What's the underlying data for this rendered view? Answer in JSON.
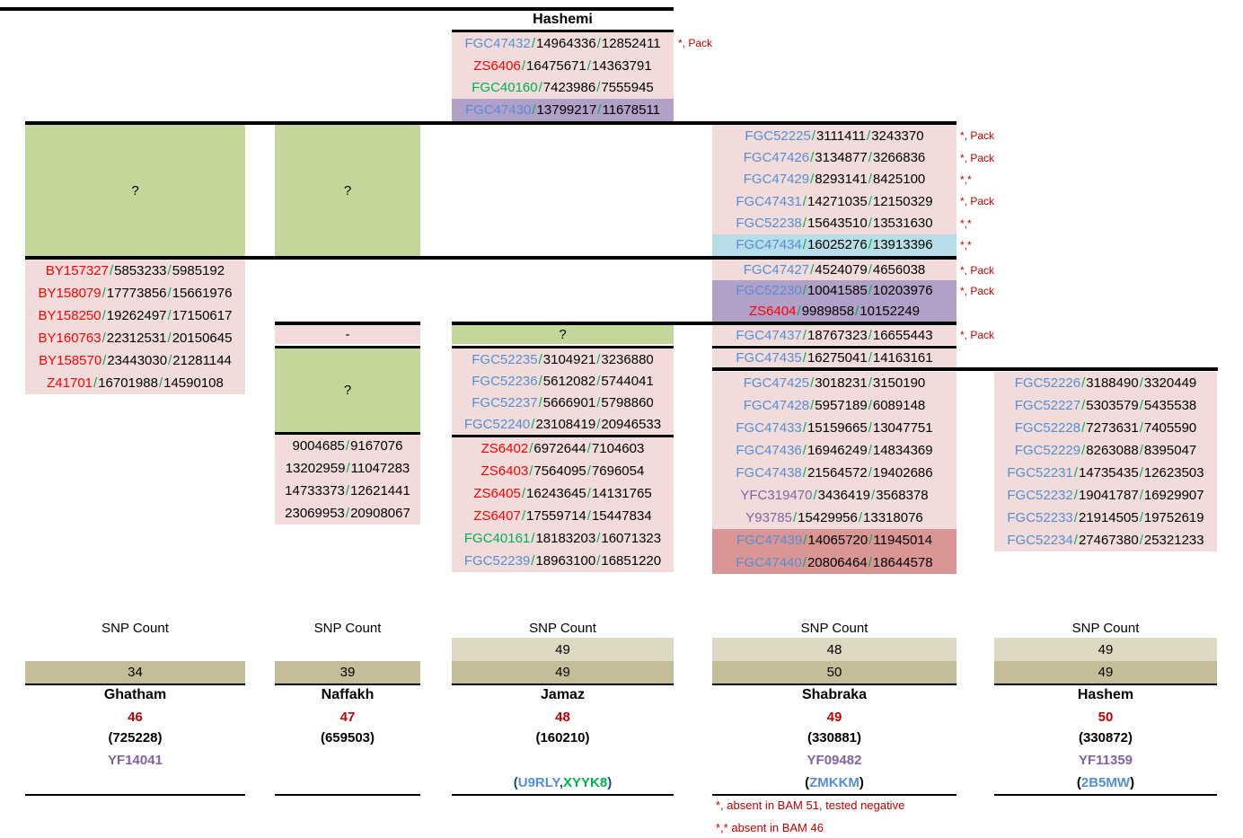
{
  "palette": {
    "row_pink": "#F2DCDB",
    "row_green": "#C4D79B",
    "row_lightblue": "#B7DEE8",
    "row_purple": "#B1A0C7",
    "row_salmon": "#D99694",
    "count_light": "#DDD9C3",
    "count_dark": "#C4BD97",
    "text_blue": "#558ED5",
    "text_red": "#FF0000",
    "text_green": "#00B050",
    "text_purple": "#8064A2",
    "text_darkred": "#C00000",
    "text_navy": "#1F497D"
  },
  "separator": "/",
  "hashemi": {
    "title": "Hashemi",
    "rows": [
      {
        "name": "FGC47432",
        "color": "blue",
        "p1": "14964336",
        "p2": "12852411",
        "bg": "pink",
        "annotation": "*, Pack"
      },
      {
        "name": "ZS6406",
        "color": "red",
        "p1": "16475671",
        "p2": "14363791",
        "bg": "pink"
      },
      {
        "name": "FGC40160",
        "color": "green",
        "p1": "7423986",
        "p2": "7555945",
        "bg": "pink"
      },
      {
        "name": "FGC47430",
        "color": "blue",
        "p1": "13799217",
        "p2": "11678511",
        "bg": "purple"
      }
    ]
  },
  "left_branch": {
    "unknown": "?",
    "rows": [
      {
        "name": "BY157327",
        "color": "red",
        "p1": "5853233",
        "p2": "5985192",
        "bg": "pink"
      },
      {
        "name": "BY158079",
        "color": "red",
        "p1": "17773856",
        "p2": "15661976",
        "bg": "pink"
      },
      {
        "name": "BY158250",
        "color": "red",
        "p1": "19262497",
        "p2": "17150617",
        "bg": "pink"
      },
      {
        "name": "BY160763",
        "color": "red",
        "p1": "22312531",
        "p2": "20150645",
        "bg": "pink"
      },
      {
        "name": "BY158570",
        "color": "red",
        "p1": "23443030",
        "p2": "21281144",
        "bg": "pink"
      },
      {
        "name": "Z41701",
        "color": "red",
        "p1": "16701988",
        "p2": "14590108",
        "bg": "pink"
      }
    ]
  },
  "second_branch": {
    "unknown_top": "?",
    "dash": "-",
    "unknown": "?",
    "rows": [
      {
        "p1": "9004685",
        "p2": "9167076",
        "bg": "pink"
      },
      {
        "p1": "13202959",
        "p2": "11047283",
        "bg": "pink"
      },
      {
        "p1": "14733373",
        "p2": "12621441",
        "bg": "pink"
      },
      {
        "p1": "23069953",
        "p2": "20908067",
        "bg": "pink"
      }
    ]
  },
  "jamaz_branch": {
    "unknown": "?",
    "group1": [
      {
        "name": "FGC52235",
        "color": "blue",
        "p1": "3104921",
        "p2": "3236880",
        "bg": "pink"
      },
      {
        "name": "FGC52236",
        "color": "blue",
        "p1": "5612082",
        "p2": "5744041",
        "bg": "pink"
      },
      {
        "name": "FGC52237",
        "color": "blue",
        "p1": "5666901",
        "p2": "5798860",
        "bg": "pink"
      },
      {
        "name": "FGC52240",
        "color": "blue",
        "p1": "23108419",
        "p2": "20946533",
        "bg": "pink"
      }
    ],
    "group2": [
      {
        "name": "ZS6402",
        "color": "red",
        "p1": "6972644",
        "p2": "7104603",
        "bg": "pink"
      },
      {
        "name": "ZS6403",
        "color": "red",
        "p1": "7564095",
        "p2": "7696054",
        "bg": "pink"
      },
      {
        "name": "ZS6405",
        "color": "red",
        "p1": "16243645",
        "p2": "14131765",
        "bg": "pink"
      },
      {
        "name": "ZS6407",
        "color": "red",
        "p1": "17559714",
        "p2": "15447834",
        "bg": "pink"
      },
      {
        "name": "FGC40161",
        "color": "green",
        "p1": "18183203",
        "p2": "16071323",
        "bg": "pink"
      },
      {
        "name": "FGC52239",
        "color": "blue",
        "p1": "18963100",
        "p2": "16851220",
        "bg": "pink"
      }
    ]
  },
  "shabraka_branch": {
    "segA": [
      {
        "name": "FGC52225",
        "color": "blue",
        "p1": "3111411",
        "p2": "3243370",
        "bg": "pink",
        "annotation": "*, Pack"
      },
      {
        "name": "FGC47426",
        "color": "blue",
        "p1": "3134877",
        "p2": "3266836",
        "bg": "pink",
        "annotation": "*, Pack"
      },
      {
        "name": "FGC47429",
        "color": "blue",
        "p1": "8293141",
        "p2": "8425100",
        "bg": "pink",
        "annotation": "*,*"
      },
      {
        "name": "FGC47431",
        "color": "blue",
        "p1": "14271035",
        "p2": "12150329",
        "bg": "pink",
        "annotation": "*, Pack"
      },
      {
        "name": "FGC52238",
        "color": "blue",
        "p1": "15643510",
        "p2": "13531630",
        "bg": "pink",
        "annotation": "*,*"
      },
      {
        "name": "FGC47434",
        "color": "blue",
        "p1": "16025276",
        "p2": "13913396",
        "bg": "lightblue",
        "annotation": "*,*"
      }
    ],
    "segB": [
      {
        "name": "FGC47427",
        "color": "blue",
        "p1": "4524079",
        "p2": "4656038",
        "bg": "pink",
        "annotation": "*, Pack"
      },
      {
        "name": "FGC52230",
        "color": "blue",
        "p1": "10041585",
        "p2": "10203976",
        "bg": "purple",
        "annotation": "*, Pack"
      },
      {
        "name": "ZS6404",
        "color": "red",
        "p1": "9989858",
        "p2": "10152249",
        "bg": "purple"
      }
    ],
    "segC": [
      {
        "name": "FGC47437",
        "color": "blue",
        "p1": "18767323",
        "p2": "16655443",
        "bg": "pink",
        "annotation": "*, Pack"
      }
    ],
    "segD": [
      {
        "name": "FGC47435",
        "color": "blue",
        "p1": "16275041",
        "p2": "14163161",
        "bg": "pink"
      }
    ],
    "segE": [
      {
        "name": "FGC47425",
        "color": "blue",
        "p1": "3018231",
        "p2": "3150190",
        "bg": "pink"
      },
      {
        "name": "FGC47428",
        "color": "blue",
        "p1": "5957189",
        "p2": "6089148",
        "bg": "pink"
      },
      {
        "name": "FGC47433",
        "color": "blue",
        "p1": "15159665",
        "p2": "13047751",
        "bg": "pink"
      },
      {
        "name": "FGC47436",
        "color": "blue",
        "p1": "16946249",
        "p2": "14834369",
        "bg": "pink"
      },
      {
        "name": "FGC47438",
        "color": "blue",
        "p1": "21564572",
        "p2": "19402686",
        "bg": "pink"
      },
      {
        "name": "YFC319470",
        "color": "purple",
        "p1": "3436419",
        "p2": "3568378",
        "bg": "pink"
      },
      {
        "name": "Y93785",
        "color": "purple",
        "p1": "15429956",
        "p2": "13318076",
        "bg": "pink"
      },
      {
        "name": "FGC47439",
        "color": "blue",
        "p1": "14065720",
        "p2": "11945014",
        "bg": "salmon"
      },
      {
        "name": "FGC47440",
        "color": "blue",
        "p1": "20806464",
        "p2": "18644578",
        "bg": "salmon"
      }
    ]
  },
  "hashem_branch": {
    "rows": [
      {
        "name": "FGC52226",
        "color": "blue",
        "p1": "3188490",
        "p2": "3320449",
        "bg": "pink"
      },
      {
        "name": "FGC52227",
        "color": "blue",
        "p1": "5303579",
        "p2": "5435538",
        "bg": "pink"
      },
      {
        "name": "FGC52228",
        "color": "blue",
        "p1": "7273631",
        "p2": "7405590",
        "bg": "pink"
      },
      {
        "name": "FGC52229",
        "color": "blue",
        "p1": "8263088",
        "p2": "8395047",
        "bg": "pink"
      },
      {
        "name": "FGC52231",
        "color": "blue",
        "p1": "14735435",
        "p2": "12623503",
        "bg": "pink"
      },
      {
        "name": "FGC52232",
        "color": "blue",
        "p1": "19041787",
        "p2": "16929907",
        "bg": "pink"
      },
      {
        "name": "FGC52233",
        "color": "blue",
        "p1": "21914505",
        "p2": "19752619",
        "bg": "pink"
      },
      {
        "name": "FGC52234",
        "color": "blue",
        "p1": "27467380",
        "p2": "25321233",
        "bg": "pink"
      }
    ]
  },
  "summary": {
    "label": "SNP Count",
    "cards": [
      {
        "counts": [
          {
            "value": "34",
            "shade": "dark"
          }
        ],
        "name": "Ghatham",
        "snp_total": "46",
        "kit": "(725228)",
        "yfull": "YF14041",
        "extra": null
      },
      {
        "counts": [
          {
            "value": "39",
            "shade": "dark"
          }
        ],
        "name": "Naffakh",
        "snp_total": "47",
        "kit": "(659503)",
        "yfull": null,
        "extra": null
      },
      {
        "counts": [
          {
            "value": "49",
            "shade": "light"
          },
          {
            "value": "49",
            "shade": "dark"
          }
        ],
        "name": "Jamaz",
        "snp_total": "48",
        "kit": "(160210)",
        "yfull": null,
        "extra": [
          {
            "text": "(",
            "color": "navy"
          },
          {
            "text": "U9RLY",
            "color": "blue"
          },
          {
            "text": ",",
            "color": "navy"
          },
          {
            "text": "XYYK8",
            "color": "green"
          },
          {
            "text": ")",
            "color": "navy"
          }
        ]
      },
      {
        "counts": [
          {
            "value": "48",
            "shade": "light"
          },
          {
            "value": "50",
            "shade": "dark"
          }
        ],
        "name": "Shabraka",
        "snp_total": "49",
        "kit": "(330881)",
        "yfull": "YF09482",
        "extra": [
          {
            "text": "(",
            "color": "black"
          },
          {
            "text": "ZMKKM",
            "color": "blue"
          },
          {
            "text": ")",
            "color": "black"
          }
        ]
      },
      {
        "counts": [
          {
            "value": "49",
            "shade": "light"
          },
          {
            "value": "49",
            "shade": "dark"
          }
        ],
        "name": "Hashem",
        "snp_total": "50",
        "kit": "(330872)",
        "yfull": "YF11359",
        "extra": [
          {
            "text": "(",
            "color": "black"
          },
          {
            "text": "2B5MW",
            "color": "blue"
          },
          {
            "text": ")",
            "color": "black"
          }
        ]
      }
    ]
  },
  "footnotes": [
    "*, absent in BAM 51, tested negative",
    "*,* absent in BAM 46"
  ]
}
